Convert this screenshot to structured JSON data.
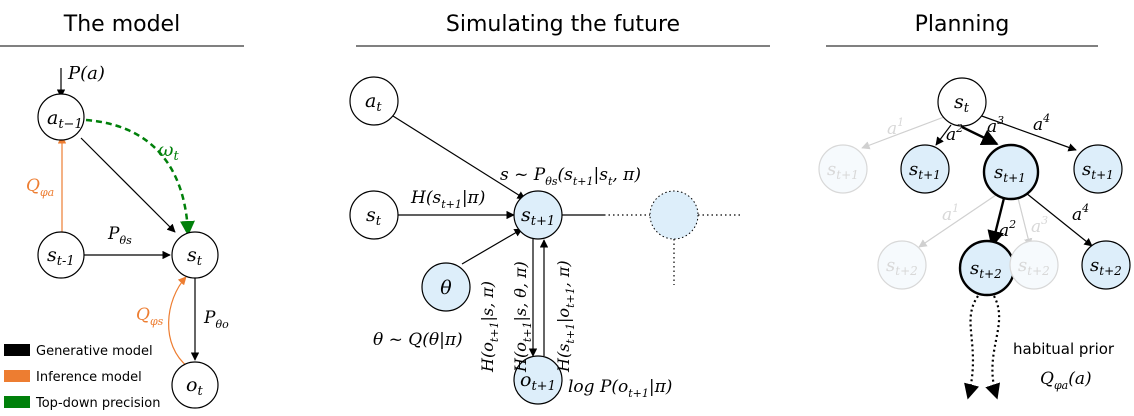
{
  "sections": {
    "model": "The model",
    "simulating": "Simulating the future",
    "planning": "Planning"
  },
  "model": {
    "prior": "P(a)",
    "a_prev": "a",
    "a_prev_sub": "t−1",
    "s_prev": "s",
    "s_prev_sub": "t-1",
    "s_t": "s",
    "s_t_sub": "t",
    "o_t": "o",
    "o_t_sub": "t",
    "omega": "ω",
    "omega_sub": "t",
    "p_theta_s": "P",
    "p_theta_s_sub": "θs",
    "p_theta_o": "P",
    "p_theta_o_sub": "θo",
    "q_phi_a": "Q",
    "q_phi_a_sub": "φa",
    "q_phi_s": "Q",
    "q_phi_s_sub": "φs"
  },
  "legend": {
    "items": [
      {
        "label": "Generative model",
        "color": "#000000"
      },
      {
        "label": "Inference model",
        "color": "#ed7d31"
      },
      {
        "label": "Top-down precision",
        "color": "#00800a"
      }
    ]
  },
  "simulating": {
    "a_t": "a",
    "a_t_sub": "t",
    "s_t": "s",
    "s_t_sub": "t",
    "theta": "θ",
    "s_next": "s",
    "s_next_sub": "t+1",
    "o_next": "o",
    "o_next_sub": "t+1",
    "transition": "s ~ P",
    "transition_sub": "θs",
    "transition_rest": "(s",
    "transition_rest_sub": "t+1",
    "transition_tail": "|s",
    "transition_tail_sub": "t",
    "transition_end": ", π)",
    "entropy_s": "H(s",
    "entropy_s_sub": "t+1",
    "entropy_s_end": "|π)",
    "theta_prior": "θ ~ Q(θ|π)",
    "log_p": "log P(o",
    "log_p_sub": "t+1",
    "log_p_end": "|π)",
    "h1": "H(o",
    "h1_sub": "t+1",
    "h1_end": "|s, π)",
    "h2": "H(o",
    "h2_sub": "t+1",
    "h2_end": "|s, θ, π)",
    "h3": "H(s",
    "h3_sub": "t+1",
    "h3_mid": "|o",
    "h3_mid_sub": "t+1",
    "h3_end": ", π)"
  },
  "planning": {
    "root": "s",
    "root_sub": "t",
    "level1": [
      {
        "label": "s",
        "sub": "t+1",
        "faded": true,
        "action": "a",
        "action_sup": "1"
      },
      {
        "label": "s",
        "sub": "t+1",
        "faded": false,
        "action": "a",
        "action_sup": "2"
      },
      {
        "label": "s",
        "sub": "t+1",
        "faded": false,
        "bold": true,
        "action": "a",
        "action_sup": "3"
      },
      {
        "label": "s",
        "sub": "t+1",
        "faded": false,
        "action": "a",
        "action_sup": "4"
      }
    ],
    "level2": [
      {
        "label": "s",
        "sub": "t+2",
        "faded": true,
        "action": "a",
        "action_sup": "1"
      },
      {
        "label": "s",
        "sub": "t+2",
        "faded": false,
        "bold": true,
        "action": "a",
        "action_sup": "2"
      },
      {
        "label": "s",
        "sub": "t+2",
        "faded": true,
        "action": "a",
        "action_sup": "3"
      },
      {
        "label": "s",
        "sub": "t+2",
        "faded": false,
        "action": "a",
        "action_sup": "4"
      }
    ],
    "habitual": "habitual prior",
    "habitual_q": "Q",
    "habitual_q_sub": "φa",
    "habitual_q_end": "(a)"
  }
}
